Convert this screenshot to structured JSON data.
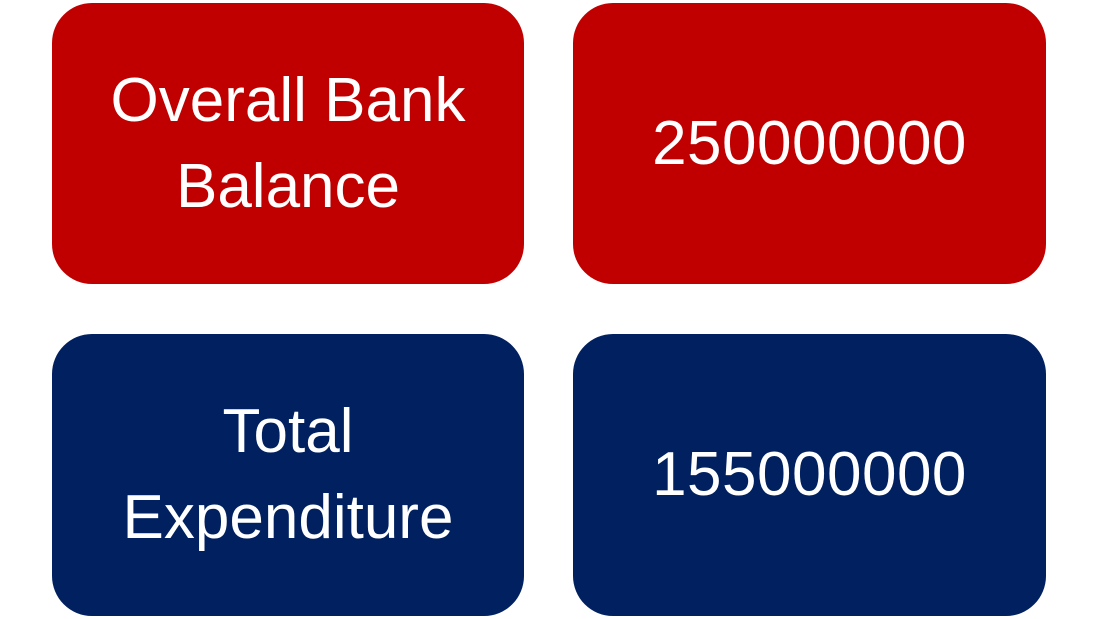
{
  "colors": {
    "red_tile": "#C00000",
    "blue_tile": "#002060",
    "text": "#FFFFFF"
  },
  "rows": [
    {
      "label": "Overall Bank\nBalance",
      "value": "250000000"
    },
    {
      "label": "Total\nExpenditure",
      "value": "155000000"
    }
  ]
}
